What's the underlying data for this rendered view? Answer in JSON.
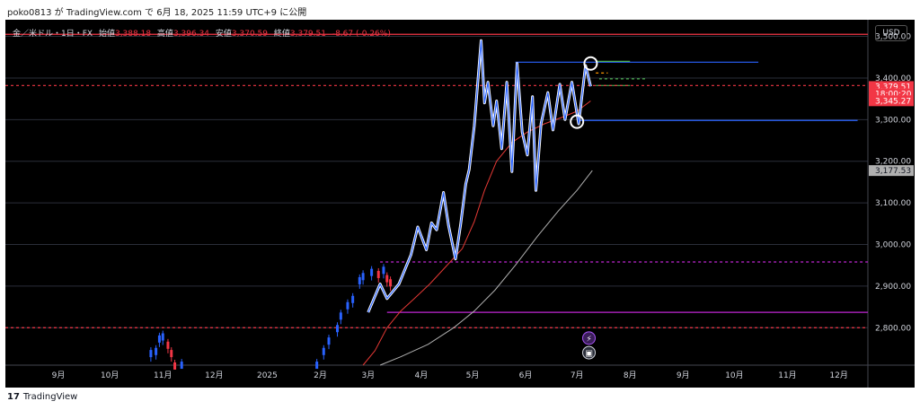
{
  "header": {
    "user": "poko0813",
    "text": "poko0813 が TradingView.com で 6月 18, 2025 11:59 UTC+9 に公開"
  },
  "legend": {
    "symbol": "金／米ドル・1日・FX",
    "open_label": "始値",
    "open_value": "3,388.18",
    "high_label": "高値",
    "high_value": "3,396.34",
    "low_label": "安値",
    "low_value": "3,370.59",
    "close_label": "終値",
    "close_value": "3,379.51",
    "change": "-8.67 (-0.26%)"
  },
  "currency_button": "USD",
  "footer": {
    "brand": "TradingView"
  },
  "colors": {
    "background": "#000000",
    "price": "#2962ff",
    "overlay": "#ffffff",
    "ma_short": "#e53935",
    "ma_long": "#b0b0b0",
    "horizontal_blue": "#2962ff",
    "horizontal_red": "#f23645",
    "horizontal_magenta": "#c026d3",
    "green_level": "#4caf50",
    "orange_level": "#ff9800"
  },
  "chart_data": {
    "type": "line",
    "title": "金／米ドル・1日・FX",
    "ylim": [
      2710,
      3540
    ],
    "ytick_labels": [
      "2,800.00",
      "2,900.00",
      "3,000.00",
      "3,100.00",
      "3,200.00",
      "3,300.00",
      "3,400.00",
      "3,500.00"
    ],
    "ytick_values": [
      2800,
      2900,
      3000,
      3100,
      3200,
      3300,
      3400,
      3500
    ],
    "x_ticks": [
      {
        "label": "9月",
        "month": "2024-09"
      },
      {
        "label": "10月",
        "month": "2024-10"
      },
      {
        "label": "11月",
        "month": "2024-11"
      },
      {
        "label": "12月",
        "month": "2024-12"
      },
      {
        "label": "2025",
        "month": "2025-01"
      },
      {
        "label": "2月",
        "month": "2025-02"
      },
      {
        "label": "3月",
        "month": "2025-03"
      },
      {
        "label": "4月",
        "month": "2025-04"
      },
      {
        "label": "5月",
        "month": "2025-05"
      },
      {
        "label": "6月",
        "month": "2025-06"
      },
      {
        "label": "7月",
        "month": "2025-07"
      },
      {
        "label": "8月",
        "month": "2025-08"
      },
      {
        "label": "9月",
        "month": "2025-09"
      },
      {
        "label": "10月",
        "month": "2025-10"
      },
      {
        "label": "11月",
        "month": "2025-11"
      },
      {
        "label": "12月",
        "month": "2025-12"
      }
    ],
    "price_labels": [
      {
        "text": "3,379.51",
        "value": 3379.51,
        "color": "#f23645"
      },
      {
        "text": "18:00:20",
        "value": 3362,
        "color": "#f23645"
      },
      {
        "text": "3,345.27",
        "value": 3345.27,
        "color": "#f23645"
      },
      {
        "text": "3,177.53",
        "value": 3177.53,
        "color": "#b0b0b0"
      }
    ],
    "series": [
      {
        "name": "",
        "style": "candles",
        "points": [
          [
            "2024-10-25",
            2740
          ],
          [
            "2024-10-28",
            2745
          ],
          [
            "2024-10-30",
            2775
          ],
          [
            "2024-11-01",
            2780
          ],
          [
            "2024-11-04",
            2760
          ],
          [
            "2024-11-06",
            2740
          ],
          [
            "2024-11-08",
            2710
          ],
          [
            "2024-11-12",
            2712
          ],
          [
            "2025-01-30",
            2712
          ],
          [
            "2025-02-03",
            2745
          ],
          [
            "2025-02-06",
            2770
          ],
          [
            "2025-02-11",
            2800
          ],
          [
            "2025-02-13",
            2830
          ],
          [
            "2025-02-17",
            2855
          ],
          [
            "2025-02-20",
            2870
          ],
          [
            "2025-02-24",
            2915
          ],
          [
            "2025-02-26",
            2925
          ],
          [
            "2025-03-03",
            2935
          ],
          [
            "2025-03-07",
            2930
          ],
          [
            "2025-03-10",
            2940
          ],
          [
            "2025-03-12",
            2920
          ],
          [
            "2025-03-14",
            2910
          ]
        ]
      },
      {
        "name": "",
        "style": "overlay",
        "points": [
          [
            "2025-03-01",
            2837
          ],
          [
            "2025-03-08",
            2905
          ],
          [
            "2025-03-12",
            2870
          ],
          [
            "2025-03-19",
            2905
          ],
          [
            "2025-03-26",
            2975
          ],
          [
            "2025-03-30",
            3042
          ],
          [
            "2025-04-04",
            2987
          ],
          [
            "2025-04-07",
            3052
          ],
          [
            "2025-04-10",
            3035
          ],
          [
            "2025-04-14",
            3125
          ],
          [
            "2025-04-17",
            3045
          ],
          [
            "2025-04-21",
            2965
          ],
          [
            "2025-04-24",
            3048
          ],
          [
            "2025-04-27",
            3145
          ],
          [
            "2025-04-29",
            3180
          ],
          [
            "2025-05-02",
            3285
          ],
          [
            "2025-05-06",
            3490
          ],
          [
            "2025-05-08",
            3340
          ],
          [
            "2025-05-10",
            3390
          ],
          [
            "2025-05-13",
            3285
          ],
          [
            "2025-05-15",
            3345
          ],
          [
            "2025-05-18",
            3230
          ],
          [
            "2025-05-21",
            3390
          ],
          [
            "2025-05-24",
            3175
          ],
          [
            "2025-05-27",
            3435
          ],
          [
            "2025-05-30",
            3270
          ],
          [
            "2025-06-02",
            3215
          ],
          [
            "2025-06-05",
            3355
          ],
          [
            "2025-06-07",
            3130
          ],
          [
            "2025-06-10",
            3290
          ],
          [
            "2025-06-14",
            3365
          ],
          [
            "2025-06-17",
            3275
          ],
          [
            "2025-06-21",
            3385
          ],
          [
            "2025-06-24",
            3300
          ],
          [
            "2025-06-28",
            3390
          ],
          [
            "2025-07-02",
            3290
          ],
          [
            "2025-07-06",
            3430
          ],
          [
            "2025-07-09",
            3380
          ]
        ]
      },
      {
        "name": "",
        "style": "ma_short",
        "points": [
          [
            "2025-02-26",
            2710
          ],
          [
            "2025-03-05",
            2745
          ],
          [
            "2025-03-12",
            2800
          ],
          [
            "2025-03-20",
            2840
          ],
          [
            "2025-03-28",
            2870
          ],
          [
            "2025-04-06",
            2905
          ],
          [
            "2025-04-15",
            2945
          ],
          [
            "2025-04-25",
            2990
          ],
          [
            "2025-05-02",
            3055
          ],
          [
            "2025-05-08",
            3130
          ],
          [
            "2025-05-15",
            3200
          ],
          [
            "2025-05-24",
            3245
          ],
          [
            "2025-06-02",
            3270
          ],
          [
            "2025-06-12",
            3290
          ],
          [
            "2025-06-22",
            3305
          ],
          [
            "2025-07-01",
            3320
          ],
          [
            "2025-07-09",
            3345
          ]
        ]
      },
      {
        "name": "",
        "style": "ma_long",
        "points": [
          [
            "2025-03-08",
            2710
          ],
          [
            "2025-03-20",
            2730
          ],
          [
            "2025-04-05",
            2760
          ],
          [
            "2025-04-20",
            2800
          ],
          [
            "2025-05-02",
            2840
          ],
          [
            "2025-05-14",
            2890
          ],
          [
            "2025-05-26",
            2950
          ],
          [
            "2025-06-08",
            3020
          ],
          [
            "2025-06-20",
            3080
          ],
          [
            "2025-07-01",
            3130
          ],
          [
            "2025-07-10",
            3177.53
          ]
        ]
      }
    ],
    "horizontal_lines": [
      {
        "value": 3505,
        "from": "2024-08-01",
        "to": "2026-01-01",
        "color": "#f23645",
        "dashed": false
      },
      {
        "value": 3438,
        "from": "2025-05-26",
        "to": "2025-10-15",
        "color": "#2962ff",
        "dashed": false
      },
      {
        "value": 3298,
        "from": "2025-07-01",
        "to": "2025-12-12",
        "color": "#2962ff",
        "dashed": false
      },
      {
        "value": 3440,
        "from": "2025-07-12",
        "to": "2025-08-01",
        "color": "#4caf50",
        "dashed": false
      },
      {
        "value": 3398,
        "from": "2025-07-14",
        "to": "2025-08-10",
        "color": "#4caf50",
        "dashed": true
      },
      {
        "value": 3412,
        "from": "2025-07-12",
        "to": "2025-07-19",
        "color": "#ff9800",
        "dashed": true
      },
      {
        "value": 3382,
        "from": "2025-07-12",
        "to": "2025-08-01",
        "color": "#4caf50",
        "dashed": false
      },
      {
        "value": 3382,
        "from": "2024-08-01",
        "to": "2026-01-01",
        "color": "#f23645",
        "dashed": true
      },
      {
        "value": 2958,
        "from": "2025-03-08",
        "to": "2026-01-01",
        "color": "#c026d3",
        "dashed": true
      },
      {
        "value": 2837,
        "from": "2025-03-12",
        "to": "2026-01-01",
        "color": "#c026d3",
        "dashed": false
      },
      {
        "value": 2800,
        "from": "2024-08-01",
        "to": "2026-01-01",
        "color": "#f23645",
        "dashed": true
      }
    ],
    "circles": [
      {
        "date": "2025-07-09",
        "value": 3435
      },
      {
        "date": "2025-07-01",
        "value": 3295
      }
    ],
    "event_icons": [
      {
        "date": "2025-07-08",
        "value": 2775,
        "icon": "lightning-icon"
      },
      {
        "date": "2025-07-08",
        "value": 2740,
        "icon": "us-flag-icon"
      }
    ]
  }
}
